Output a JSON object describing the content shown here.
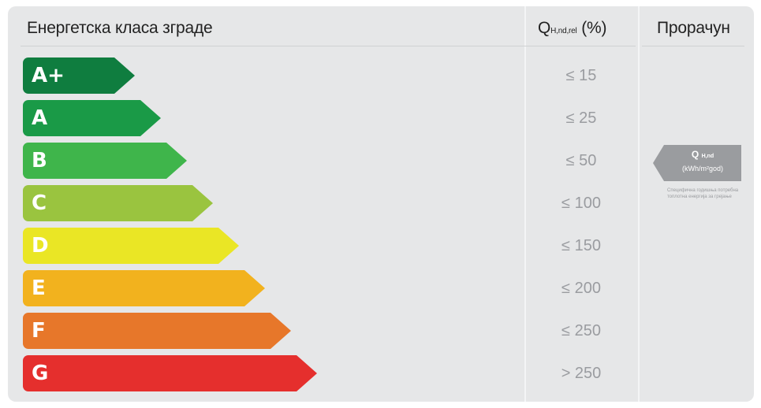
{
  "header": {
    "class_label": "Енергетска класа зграде",
    "q_symbol": "Q",
    "q_subscript": "H,nd,rel",
    "q_unit": "(%)",
    "calc_label": "Прорачун"
  },
  "classes": [
    {
      "label": "A+",
      "range": "≤ 15",
      "color": "#0f7d3f"
    },
    {
      "label": "A",
      "range": "≤ 25",
      "color": "#1a9a47"
    },
    {
      "label": "B",
      "range": "≤ 50",
      "color": "#3fb54b"
    },
    {
      "label": "C",
      "range": "≤ 100",
      "color": "#9ac43f"
    },
    {
      "label": "D",
      "range": "≤ 150",
      "color": "#eae625"
    },
    {
      "label": "E",
      "range": "≤ 200",
      "color": "#f2b21e"
    },
    {
      "label": "F",
      "range": "≤ 250",
      "color": "#e7772a"
    },
    {
      "label": "G",
      "range": "> 250",
      "color": "#e52f2d"
    }
  ],
  "calculation": {
    "q_symbol": "Q",
    "q_subscript": "H,nd",
    "unit": "(kWh/m²god)",
    "note": "Специфична годишња потребна топлотна енергија за грејање"
  }
}
